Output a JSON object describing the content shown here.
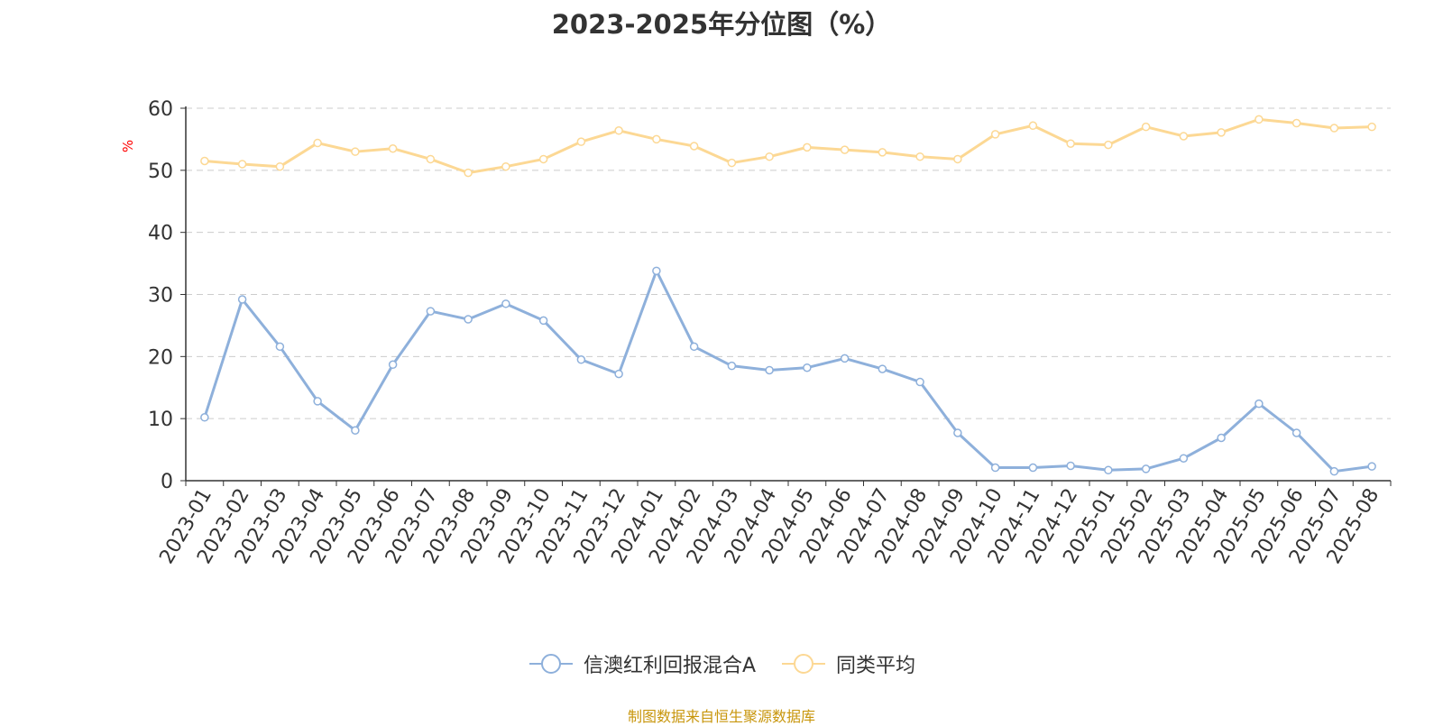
{
  "chart_data": {
    "type": "line",
    "title": "2023-2025年分位图（%）",
    "ylabel": "%",
    "xlabel": "",
    "ylim": [
      0,
      60
    ],
    "yticks": [
      0,
      10,
      20,
      30,
      40,
      50,
      60
    ],
    "grid": true,
    "legend_position": "bottom-center",
    "categories": [
      "2023-01",
      "2023-02",
      "2023-03",
      "2023-04",
      "2023-05",
      "2023-06",
      "2023-07",
      "2023-08",
      "2023-09",
      "2023-10",
      "2023-11",
      "2023-12",
      "2024-01",
      "2024-02",
      "2024-03",
      "2024-04",
      "2024-05",
      "2024-06",
      "2024-07",
      "2024-08",
      "2024-09",
      "2024-10",
      "2024-11",
      "2024-12",
      "2025-01",
      "2025-02",
      "2025-03",
      "2025-04",
      "2025-05",
      "2025-06",
      "2025-07",
      "2025-08"
    ],
    "series": [
      {
        "name": "信澳红利回报混合A",
        "color": "#8eb0db",
        "values": [
          10.2,
          29.2,
          21.6,
          12.8,
          8.1,
          18.7,
          27.3,
          26.0,
          28.5,
          25.8,
          19.5,
          17.2,
          33.8,
          21.6,
          18.5,
          17.8,
          18.2,
          19.7,
          18.0,
          15.9,
          7.7,
          2.1,
          2.1,
          2.4,
          1.7,
          1.9,
          3.6,
          6.9,
          12.4,
          7.7,
          1.5,
          2.3
        ]
      },
      {
        "name": "同类平均",
        "color": "#fcd894",
        "values": [
          51.5,
          51.0,
          50.6,
          54.4,
          53.0,
          53.5,
          51.8,
          49.6,
          50.6,
          51.8,
          54.6,
          56.4,
          55.0,
          53.9,
          51.2,
          52.2,
          53.7,
          53.3,
          52.9,
          52.2,
          51.8,
          55.8,
          57.2,
          54.3,
          54.1,
          57.0,
          55.5,
          56.1,
          58.2,
          57.6,
          56.8,
          57.0
        ]
      }
    ]
  },
  "source_note": "制图数据来自恒生聚源数据库",
  "colors": {
    "axis": "#333333",
    "grid": "#cccccc",
    "ylabel": "#ff0000",
    "source_note": "#c8960c"
  }
}
